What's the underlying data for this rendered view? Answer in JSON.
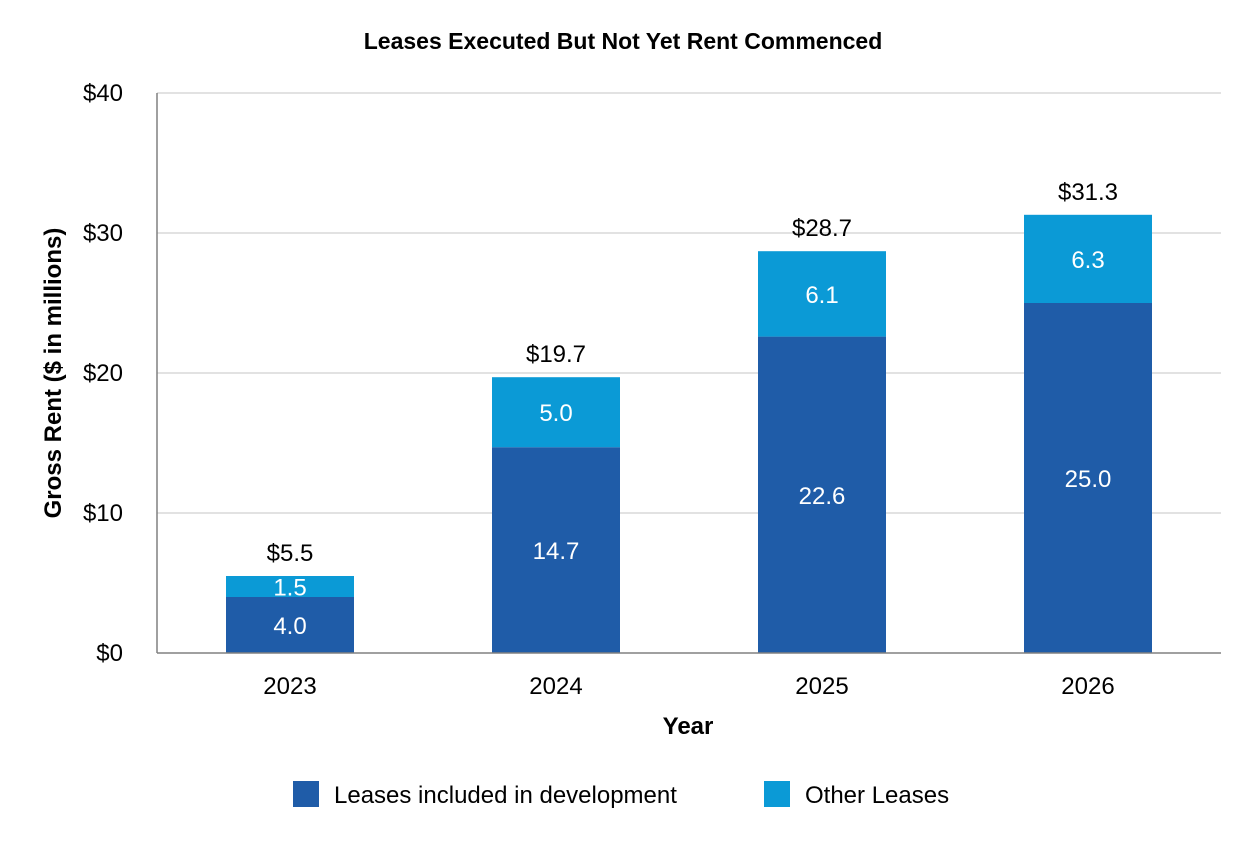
{
  "chart_data": {
    "type": "bar",
    "stacked": true,
    "title": "Leases Executed But Not Yet Rent Commenced",
    "xlabel": "Year",
    "ylabel": "Gross Rent ($ in millions)",
    "categories": [
      "2023",
      "2024",
      "2025",
      "2026"
    ],
    "series": [
      {
        "name": "Leases included in development",
        "values": [
          4.0,
          14.7,
          22.6,
          25.0
        ],
        "labels": [
          "4.0",
          "14.7",
          "22.6",
          "25.0"
        ],
        "color": "#1f5ca8"
      },
      {
        "name": "Other Leases",
        "values": [
          1.5,
          5.0,
          6.1,
          6.3
        ],
        "labels": [
          "1.5",
          "5.0",
          "6.1",
          "6.3"
        ],
        "color": "#0b9ad6"
      }
    ],
    "totals": [
      "$5.5",
      "$19.7",
      "$28.7",
      "$31.3"
    ],
    "ylim": [
      0,
      40
    ],
    "yticks": [
      0,
      10,
      20,
      30,
      40
    ],
    "ytick_labels": [
      "$0",
      "$10",
      "$20",
      "$30",
      "$40"
    ],
    "grid": true,
    "legend_position": "bottom-center"
  }
}
